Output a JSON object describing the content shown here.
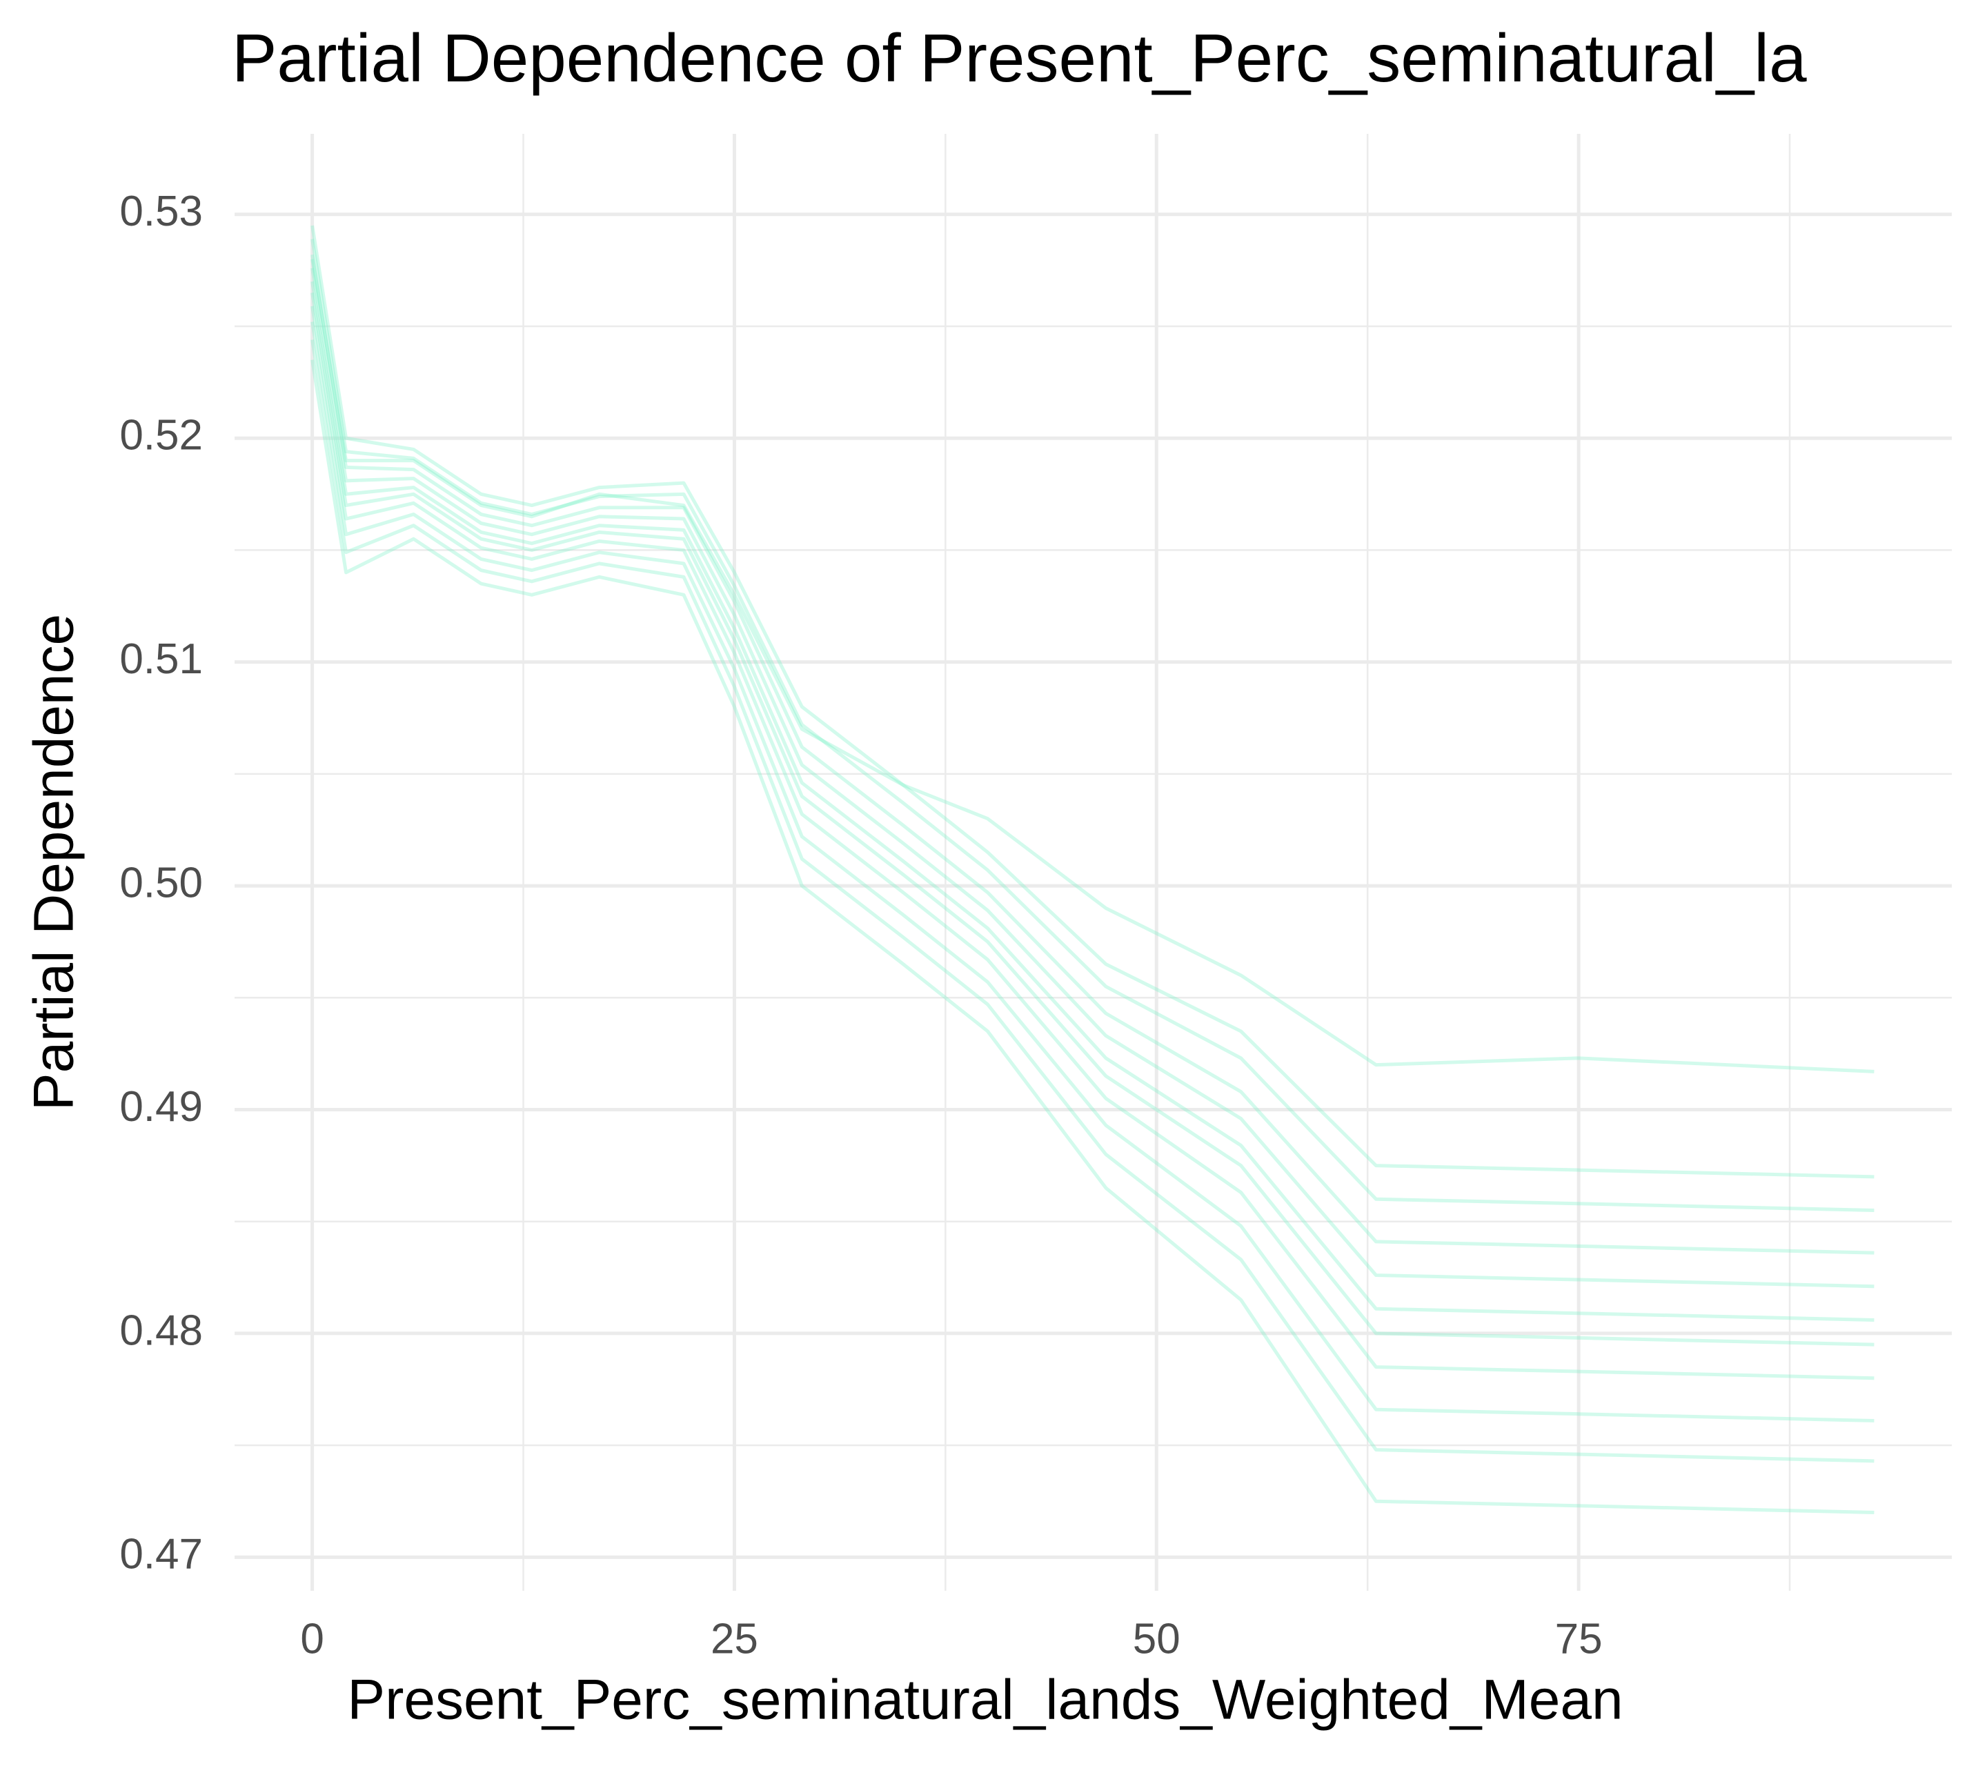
{
  "chart_data": {
    "type": "line",
    "title": "Partial Dependence of Present_Perc_seminatural_la",
    "x_label": "Present_Perc_seminatural_lands_Weighted_Mean",
    "y_label": "Partial Dependence",
    "x": [
      0,
      2,
      6,
      10,
      13,
      17,
      22,
      25,
      29,
      35,
      40,
      47,
      55,
      63,
      75,
      92.5
    ],
    "series": [
      {
        "color": "#7ff0c8",
        "values": [
          0.5235,
          0.514,
          0.5155,
          0.5135,
          0.513,
          0.5138,
          0.513,
          0.508,
          0.5,
          0.4965,
          0.4935,
          0.4865,
          0.4815,
          0.4725,
          0.4723,
          0.472
        ]
      },
      {
        "color": "#7ff0c8",
        "values": [
          0.5244,
          0.5149,
          0.5161,
          0.5141,
          0.5136,
          0.5144,
          0.5138,
          0.5089,
          0.5012,
          0.4977,
          0.4947,
          0.488,
          0.4833,
          0.4748,
          0.4746,
          0.4743
        ]
      },
      {
        "color": "#7ff0c8",
        "values": [
          0.5252,
          0.5157,
          0.5166,
          0.5146,
          0.5141,
          0.5149,
          0.5144,
          0.5097,
          0.5022,
          0.4987,
          0.4957,
          0.4893,
          0.4848,
          0.4766,
          0.4764,
          0.4761
        ]
      },
      {
        "color": "#7ff0c8",
        "values": [
          0.5259,
          0.5164,
          0.5171,
          0.5151,
          0.5146,
          0.5154,
          0.515,
          0.5104,
          0.5032,
          0.4997,
          0.4967,
          0.4905,
          0.4863,
          0.4785,
          0.4783,
          0.478
        ]
      },
      {
        "color": "#7ff0c8",
        "values": [
          0.5265,
          0.517,
          0.5175,
          0.5155,
          0.515,
          0.5158,
          0.5155,
          0.511,
          0.504,
          0.5005,
          0.4975,
          0.4915,
          0.4875,
          0.48,
          0.4798,
          0.4795
        ]
      },
      {
        "color": "#7ff0c8",
        "values": [
          0.527,
          0.5175,
          0.5178,
          0.5158,
          0.5153,
          0.5161,
          0.5159,
          0.5115,
          0.5046,
          0.5011,
          0.4981,
          0.4923,
          0.4884,
          0.4811,
          0.4809,
          0.4806
        ]
      },
      {
        "color": "#7ff0c8",
        "values": [
          0.5276,
          0.5181,
          0.5182,
          0.5162,
          0.5157,
          0.5165,
          0.5164,
          0.5121,
          0.5054,
          0.5019,
          0.4989,
          0.4933,
          0.4896,
          0.4826,
          0.4824,
          0.4821
        ]
      },
      {
        "color": "#7ff0c8",
        "values": [
          0.5282,
          0.5187,
          0.5186,
          0.5166,
          0.5161,
          0.5169,
          0.5169,
          0.5127,
          0.5062,
          0.5027,
          0.4997,
          0.4943,
          0.4908,
          0.4841,
          0.4839,
          0.4836
        ]
      },
      {
        "color": "#7ff0c8",
        "values": [
          0.5289,
          0.5194,
          0.5191,
          0.5171,
          0.5166,
          0.5174,
          0.5175,
          0.5134,
          0.5072,
          0.5037,
          0.5007,
          0.4955,
          0.4923,
          0.486,
          0.4858,
          0.4855
        ]
      },
      {
        "color": "#7ff0c8",
        "values": [
          0.5295,
          0.52,
          0.5195,
          0.5175,
          0.517,
          0.5178,
          0.518,
          0.514,
          0.508,
          0.5045,
          0.5015,
          0.4965,
          0.4935,
          0.4875,
          0.4873,
          0.487
        ]
      },
      {
        "color": "#7ff0c8",
        "values": [
          0.528,
          0.519,
          0.519,
          0.517,
          0.5165,
          0.5175,
          0.517,
          0.513,
          0.507,
          0.5045,
          0.503,
          0.499,
          0.496,
          0.492,
          0.4923,
          0.4917
        ]
      }
    ],
    "line_opacity": 0.35,
    "xlim": [
      -4.6,
      97.1
    ],
    "xticks": [
      0,
      25,
      50,
      75
    ],
    "x_minor_grid": [
      12.5,
      37.5,
      62.5,
      87.5
    ],
    "ylim": [
      0.4685,
      0.5336
    ],
    "yticks": [
      {
        "value": 0.47,
        "label": "0.47"
      },
      {
        "value": 0.48,
        "label": "0.48"
      },
      {
        "value": 0.49,
        "label": "0.49"
      },
      {
        "value": 0.5,
        "label": "0.50"
      },
      {
        "value": 0.51,
        "label": "0.51"
      },
      {
        "value": 0.52,
        "label": "0.52"
      },
      {
        "value": 0.53,
        "label": "0.53"
      }
    ],
    "y_minor_grid": [
      0.475,
      0.485,
      0.495,
      0.505,
      0.515,
      0.525
    ],
    "grid": true
  }
}
